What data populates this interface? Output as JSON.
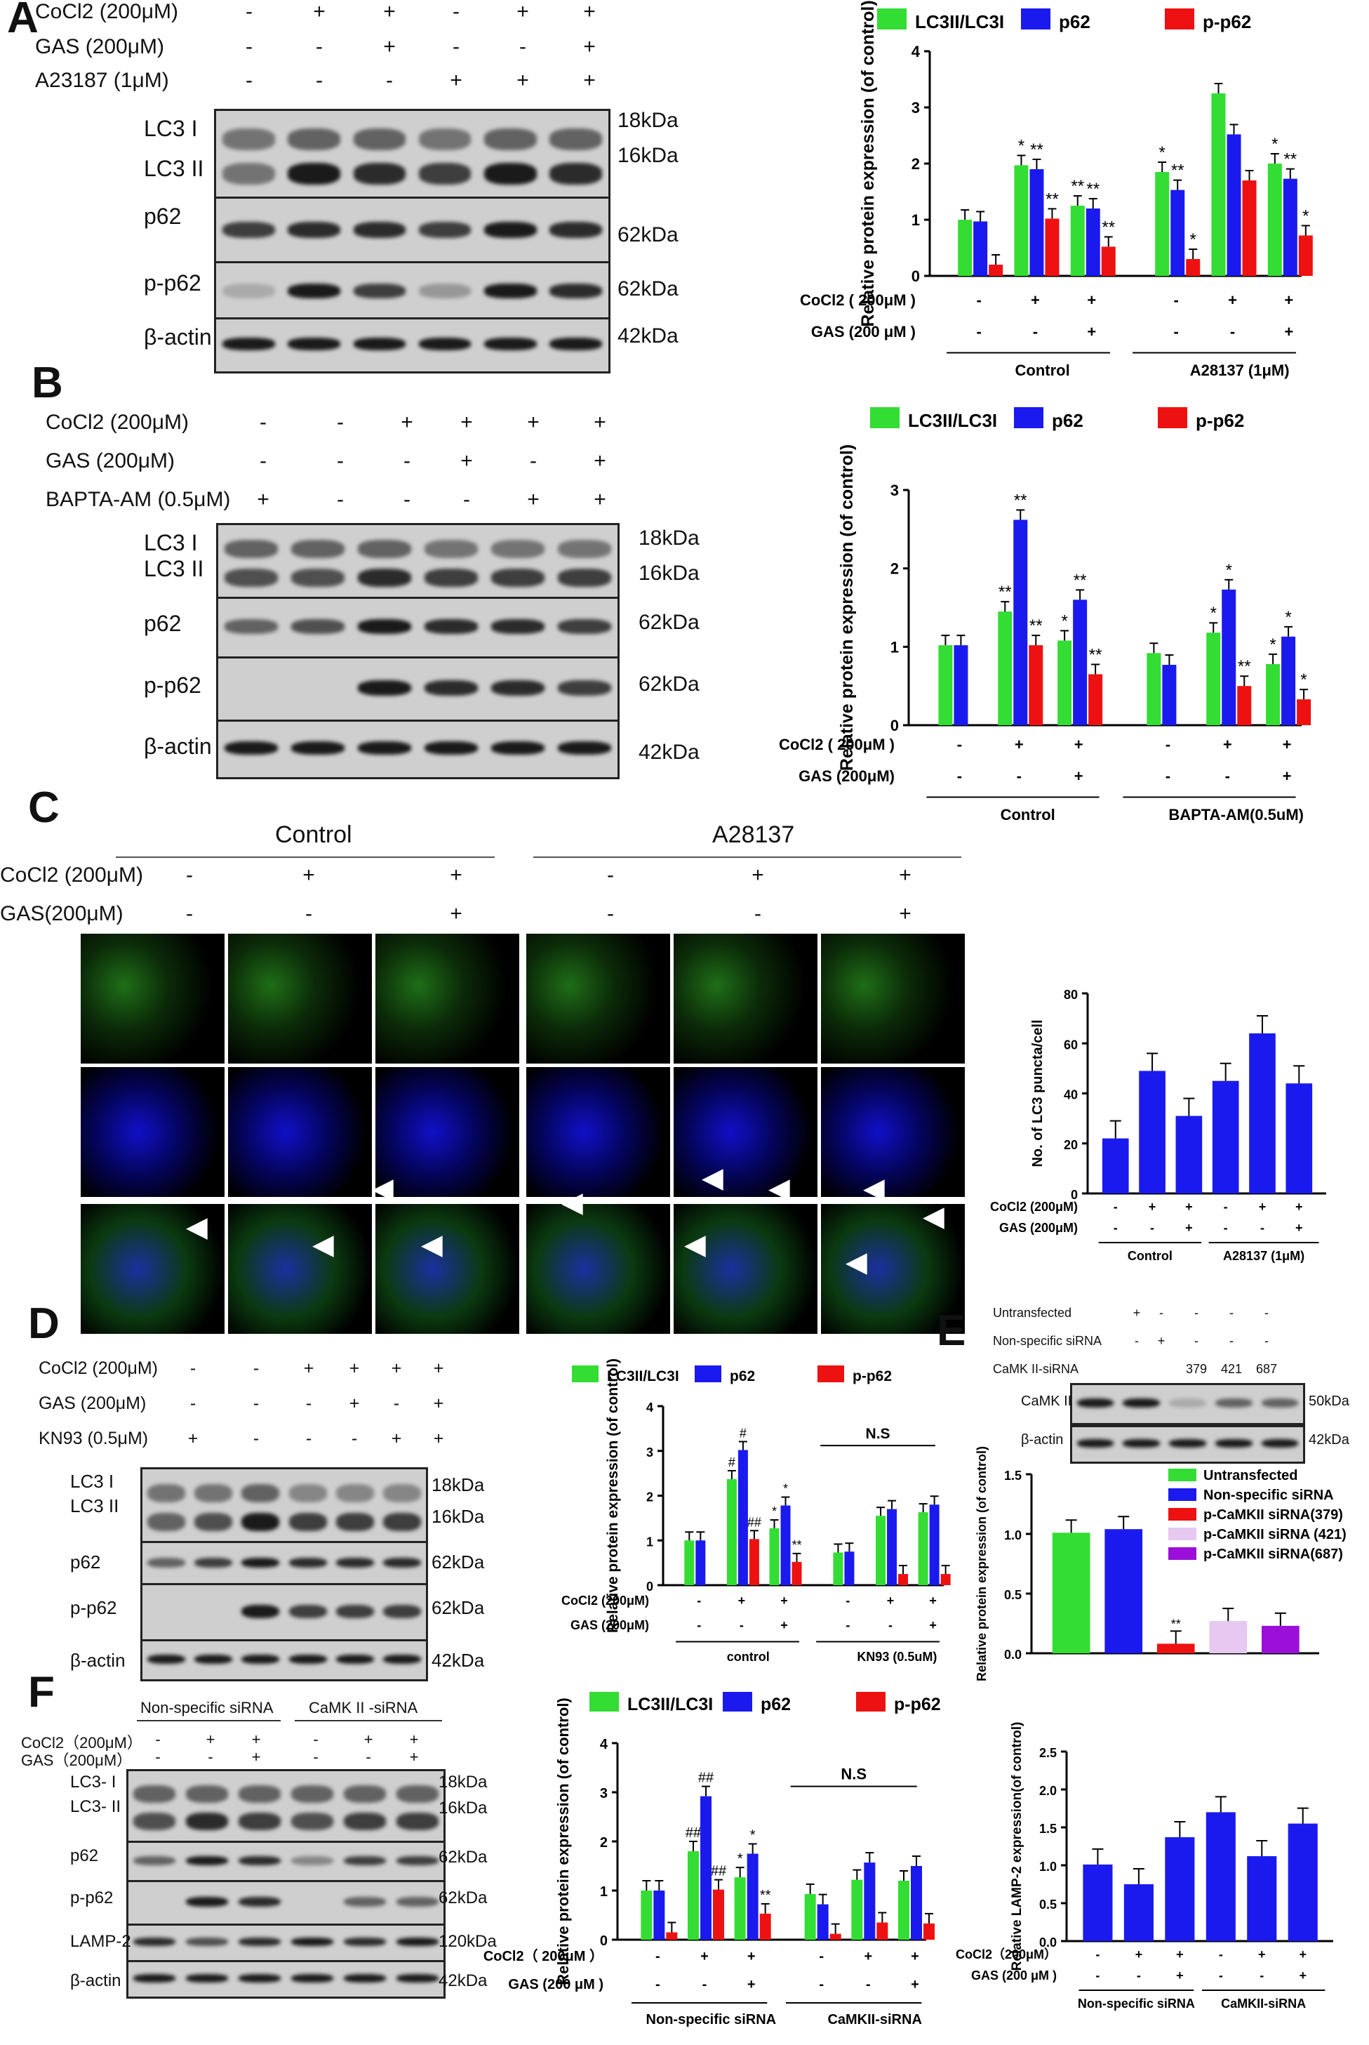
{
  "panels": {
    "A": "A",
    "B": "B",
    "C": "C",
    "D": "D",
    "E": "E",
    "F": "F"
  },
  "legend_chart": [
    "LC3II/LC3I",
    "p62",
    "p-p62"
  ],
  "colors": {
    "green": "#33dd33",
    "blue": "#1a1aee",
    "red": "#ee1111",
    "lilac": "#e6c8f0",
    "purple": "#9a10d8"
  },
  "A": {
    "conditions": [
      "CoCl2 (200μM)",
      "GAS (200μM)",
      "A23187 (1μM)"
    ],
    "signs": [
      [
        "-",
        "+",
        "+",
        "-",
        "+",
        "+"
      ],
      [
        "-",
        "-",
        "+",
        "-",
        "-",
        "+"
      ],
      [
        "-",
        "-",
        "-",
        "+",
        "+",
        "+"
      ]
    ],
    "rows": [
      "LC3 I",
      "LC3 II",
      "p62",
      "p-p62",
      "β-actin"
    ],
    "kda": [
      "18kDa",
      "16kDa",
      "62kDa",
      "62kDa",
      "42kDa"
    ]
  },
  "B": {
    "conditions": [
      "CoCl2 (200μM)",
      "GAS (200μM)",
      "BAPTA-AM (0.5μM)"
    ],
    "signs": [
      [
        "-",
        "-",
        "+",
        "+",
        "+",
        "+"
      ],
      [
        "-",
        "-",
        "-",
        "+",
        "-",
        "+"
      ],
      [
        "+",
        "-",
        "-",
        "-",
        "+",
        "+"
      ]
    ],
    "rows": [
      "LC3 I",
      "LC3 II",
      "p62",
      "p-p62",
      "β-actin"
    ],
    "kda": [
      "18kDa",
      "16kDa",
      "62kDa",
      "62kDa",
      "42kDa"
    ]
  },
  "C": {
    "groups": [
      "Control",
      "A28137"
    ],
    "conditions": [
      "CoCl2 (200μM)",
      "GAS(200μM)"
    ],
    "signs": [
      [
        "-",
        "+",
        "+",
        "-",
        "+",
        "+"
      ],
      [
        "-",
        "-",
        "+",
        "-",
        "-",
        "+"
      ]
    ]
  },
  "D": {
    "conditions": [
      "CoCl2 (200μM)",
      "GAS (200μM)",
      "KN93 (0.5μM)"
    ],
    "signs": [
      [
        "-",
        "-",
        "+",
        "+",
        "+",
        "+"
      ],
      [
        "-",
        "-",
        "-",
        "+",
        "-",
        "+"
      ],
      [
        "+",
        "-",
        "-",
        "-",
        "+",
        "+"
      ]
    ],
    "rows": [
      "LC3 I",
      "LC3 II",
      "p62",
      "p-p62",
      "β-actin"
    ],
    "kda": [
      "18kDa",
      "16kDa",
      "62kDa",
      "62kDa",
      "42kDa"
    ]
  },
  "E": {
    "conditions": [
      "Untransfected",
      "Non-specific siRNA",
      "CaMK II-siRNA"
    ],
    "signs": [
      [
        "+",
        "-",
        "-",
        "-",
        "-"
      ],
      [
        "-",
        "+",
        "-",
        "-",
        "-"
      ],
      [
        "",
        "",
        "379",
        "421",
        "687"
      ]
    ],
    "rows": [
      "CaMK II",
      "β-actin"
    ],
    "kda": [
      "50kDa",
      "42kDa"
    ]
  },
  "F": {
    "groups": [
      "Non-specific siRNA",
      "CaMK II -siRNA"
    ],
    "conditions": [
      "CoCl2（200μM）",
      "GAS（200μM）"
    ],
    "signs": [
      [
        "-",
        "+",
        "+",
        "-",
        "+",
        "+"
      ],
      [
        "-",
        "-",
        "+",
        "-",
        "-",
        "+"
      ]
    ],
    "rows": [
      "LC3- I",
      "LC3- II",
      "p62",
      "p-p62",
      "LAMP-2",
      "β-actin"
    ],
    "kda": [
      "18kDa",
      "16kDa",
      "62kDa",
      "62kDa",
      "120kDa",
      "42kDa"
    ]
  },
  "chart_data": [
    {
      "id": "A",
      "type": "bar",
      "ylabel": "Relative protein expression (of control)",
      "ylim": [
        0,
        4
      ],
      "yticks": [
        "0",
        "1",
        "2",
        "3",
        "4"
      ],
      "legend": [
        "LC3II/LC3I",
        "p62",
        "p-p62"
      ],
      "row_labels": [
        "CoCl2 ( 200μM )",
        "GAS (200 μM )"
      ],
      "row_signs": [
        [
          "-",
          "+",
          "+",
          "-",
          "+",
          "+"
        ],
        [
          "-",
          "-",
          "+",
          "-",
          "-",
          "+"
        ]
      ],
      "groups": [
        "Control",
        "A28137 (1μM)"
      ],
      "series": [
        {
          "name": "LC3II/LC3I",
          "values": [
            1.0,
            1.97,
            1.25,
            1.85,
            3.25,
            2.0
          ]
        },
        {
          "name": "p62",
          "values": [
            0.97,
            1.9,
            1.2,
            1.53,
            2.52,
            1.73
          ]
        },
        {
          "name": "p-p62",
          "values": [
            0.2,
            1.02,
            0.52,
            0.3,
            1.7,
            0.72
          ]
        }
      ],
      "marks": [
        [
          "",
          "*",
          "**",
          "*",
          "",
          "*"
        ],
        [
          "",
          "**",
          "**",
          "**",
          "",
          "**"
        ],
        [
          "",
          "**",
          "**",
          "*",
          "",
          "*"
        ]
      ]
    },
    {
      "id": "B",
      "type": "bar",
      "ylabel": "Relative protein expression (of control)",
      "ylim": [
        0,
        3
      ],
      "yticks": [
        "0",
        "1",
        "2",
        "3"
      ],
      "legend": [
        "LC3II/LC3I",
        "p62",
        "p-p62"
      ],
      "row_labels": [
        "CoCl2 ( 200μM )",
        "GAS (200μM)"
      ],
      "row_signs": [
        [
          "-",
          "+",
          "+",
          "-",
          "+",
          "+"
        ],
        [
          "-",
          "-",
          "+",
          "-",
          "-",
          "+"
        ]
      ],
      "groups": [
        "Control",
        "BAPTA-AM(0.5uM)"
      ],
      "series": [
        {
          "name": "LC3II/LC3I",
          "values": [
            1.02,
            1.45,
            1.08,
            0.92,
            1.18,
            0.78
          ]
        },
        {
          "name": "p62",
          "values": [
            1.02,
            2.62,
            1.6,
            0.77,
            1.73,
            1.13
          ]
        },
        {
          "name": "p-p62",
          "values": [
            null,
            1.02,
            0.65,
            null,
            0.5,
            0.33
          ]
        }
      ],
      "marks": [
        [
          "",
          "**",
          "*",
          "",
          "*",
          "*"
        ],
        [
          "",
          "**",
          "**",
          "",
          "*",
          "*"
        ],
        [
          "",
          "**",
          "**",
          "",
          "**",
          "*"
        ]
      ]
    },
    {
      "id": "C",
      "type": "bar",
      "ylabel": "No. of LC3 puncta/cell",
      "ylim": [
        0,
        80
      ],
      "yticks": [
        "0",
        "20",
        "40",
        "60",
        "80"
      ],
      "row_labels": [
        "CoCl2 (200μM)",
        "GAS (200μM)"
      ],
      "row_signs": [
        [
          "-",
          "+",
          "+",
          "-",
          "+",
          "+"
        ],
        [
          "-",
          "-",
          "+",
          "-",
          "-",
          "+"
        ]
      ],
      "groups": [
        "Control",
        "A28137 (1μM)"
      ],
      "values": [
        22,
        49,
        31,
        45,
        64,
        44
      ]
    },
    {
      "id": "D",
      "type": "bar",
      "ylabel": "Relative protein expression (of control)",
      "ylim": [
        0,
        4
      ],
      "yticks": [
        "0",
        "1",
        "2",
        "3",
        "4"
      ],
      "legend": [
        "LC3II/LC3I",
        "p62",
        "p-p62"
      ],
      "row_labels": [
        "CoCl2 (200μM)",
        "GAS (200μM)"
      ],
      "row_signs": [
        [
          "-",
          "+",
          "+",
          "-",
          "+",
          "+"
        ],
        [
          "-",
          "-",
          "+",
          "-",
          "-",
          "+"
        ]
      ],
      "groups": [
        "control",
        "KN93 (0.5uM)"
      ],
      "annotation": "N.S",
      "series": [
        {
          "name": "LC3II/LC3I",
          "values": [
            1.0,
            2.37,
            1.27,
            0.73,
            1.55,
            1.63
          ]
        },
        {
          "name": "p62",
          "values": [
            1.0,
            3.02,
            1.78,
            0.75,
            1.7,
            1.8
          ]
        },
        {
          "name": "p-p62",
          "values": [
            null,
            1.03,
            0.52,
            null,
            0.25,
            0.25
          ]
        }
      ],
      "marks": [
        [
          "",
          "#",
          "*",
          "",
          "",
          ""
        ],
        [
          "",
          "#",
          "*",
          "",
          "",
          ""
        ],
        [
          "",
          "##",
          "**",
          "",
          "",
          ""
        ]
      ]
    },
    {
      "id": "E",
      "type": "bar",
      "ylabel": "Relative protein expression (of control)",
      "ylim": [
        0,
        1.5
      ],
      "yticks": [
        "0.0",
        "0.5",
        "1.0",
        "1.5"
      ],
      "legend": [
        "Untransfected",
        "Non-specific siRNA",
        "p-CaMKII siRNA(379)",
        "p-CaMKII siRNA (421)",
        "p-CaMKII siRNA(687)"
      ],
      "values": [
        1.01,
        1.04,
        0.08,
        0.27,
        0.23
      ],
      "marks": [
        "",
        "",
        "**",
        "",
        ""
      ]
    },
    {
      "id": "F1",
      "type": "bar",
      "ylabel": "Relative protein expression (of control)",
      "ylim": [
        0,
        4
      ],
      "yticks": [
        "0",
        "1",
        "2",
        "3",
        "4"
      ],
      "legend": [
        "LC3II/LC3I",
        "p62",
        "p-p62"
      ],
      "row_labels": [
        "CoCl2（ 200μM ）",
        "GAS (200 μM )"
      ],
      "row_signs": [
        [
          "-",
          "+",
          "+",
          "-",
          "+",
          "+"
        ],
        [
          "-",
          "-",
          "+",
          "-",
          "-",
          "+"
        ]
      ],
      "groups": [
        "Non-specific siRNA",
        "CaMKII-siRNA"
      ],
      "annotation": "N.S",
      "series": [
        {
          "name": "LC3II/LC3I",
          "values": [
            1.0,
            1.8,
            1.27,
            0.93,
            1.22,
            1.2
          ]
        },
        {
          "name": "p62",
          "values": [
            1.0,
            2.92,
            1.75,
            0.72,
            1.57,
            1.5
          ]
        },
        {
          "name": "p-p62",
          "values": [
            0.15,
            1.02,
            0.53,
            0.12,
            0.35,
            0.33
          ]
        }
      ],
      "marks": [
        [
          "",
          "##",
          "*",
          "",
          "",
          ""
        ],
        [
          "",
          "##",
          "*",
          "",
          "",
          ""
        ],
        [
          "",
          "##",
          "**",
          "",
          "",
          ""
        ]
      ]
    },
    {
      "id": "F2",
      "type": "bar",
      "ylabel": "Relative LAMP-2 expression(of control)",
      "ylim": [
        0,
        2.5
      ],
      "yticks": [
        "0.0",
        "0.5",
        "1.0",
        "1.5",
        "2.0",
        "2.5"
      ],
      "row_labels": [
        "CoCl2（200μM）",
        "GAS (200 μM )"
      ],
      "row_signs": [
        [
          "-",
          "+",
          "+",
          "-",
          "+",
          "+"
        ],
        [
          "-",
          "-",
          "+",
          "-",
          "-",
          "+"
        ]
      ],
      "groups": [
        "Non-specific siRNA",
        "CaMKII-siRNA"
      ],
      "values": [
        1.01,
        0.75,
        1.37,
        1.7,
        1.12,
        1.55
      ]
    }
  ]
}
